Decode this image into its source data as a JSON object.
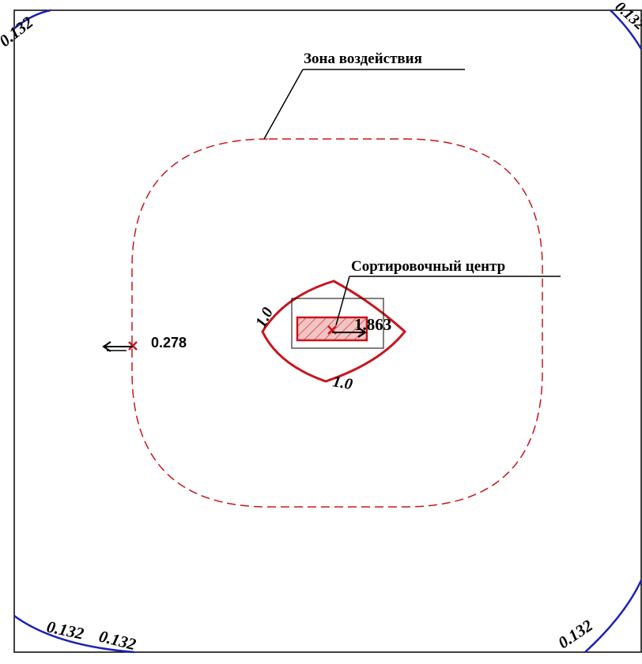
{
  "labels": {
    "zone_title": "Зона воздействия",
    "center_title": "Сортировочный центр",
    "point_value": "0.278",
    "source_value": "1.863"
  },
  "contours": {
    "outer_value": "0.132",
    "outer_value_top_right": "0.132",
    "inner_value": "1.0"
  },
  "colors": {
    "outer_isoline": "#1a22b5",
    "inner_isoline": "#c8161d",
    "zone_boundary": "#c8161d",
    "source_fill": "#f3c4c4",
    "frame": "#000000"
  },
  "icons": {
    "point_marker": "x-marker-icon",
    "direction_arrow": "arrow-icon"
  }
}
